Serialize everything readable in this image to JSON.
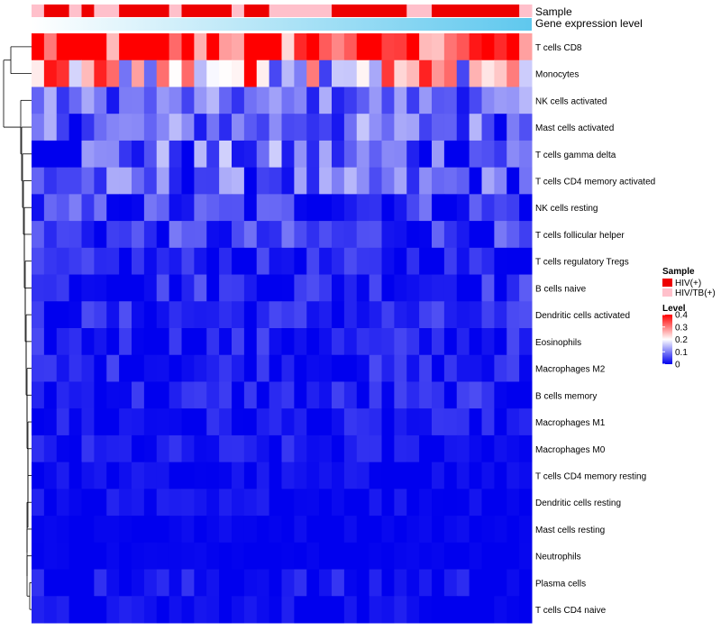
{
  "chart_data": {
    "type": "heatmap",
    "title": "",
    "annotations": {
      "sample_label": "Sample",
      "gene_label": "Gene expression level"
    },
    "n_columns": 40,
    "sample_groups": [
      "HIV(+)",
      "HIV/TB(+)"
    ],
    "sample_colors": {
      "HIV(+)": "#ee0000",
      "HIV/TB(+)": "#ffc0cb"
    },
    "sample_annotation": [
      1,
      0,
      0,
      1,
      0,
      1,
      1,
      0,
      0,
      0,
      0,
      1,
      0,
      0,
      0,
      0,
      1,
      0,
      0,
      1,
      1,
      1,
      1,
      1,
      0,
      0,
      0,
      0,
      0,
      0,
      1,
      1,
      0,
      0,
      0,
      0,
      0,
      0,
      0,
      1
    ],
    "gene_expression_gradient": [
      "#ffffff",
      "#5fc8ee"
    ],
    "rows": [
      "T cells CD8",
      "Monocytes",
      "NK cells activated",
      "Mast cells activated",
      "T cells gamma delta",
      "T cells CD4 memory activated",
      "NK cells resting",
      "T cells follicular helper",
      "T cells regulatory  Tregs",
      "B cells naive",
      "Dendritic cells activated",
      "Eosinophils",
      "Macrophages M2",
      "B cells memory",
      "Macrophages M1",
      "Macrophages M0",
      "T cells CD4 memory resting",
      "Dendritic cells resting",
      "Mast cells resting",
      "Neutrophils",
      "Plasma cells",
      "T cells CD4 naive"
    ],
    "row_means": [
      0.38,
      0.24,
      0.08,
      0.08,
      0.07,
      0.065,
      0.04,
      0.04,
      0.02,
      0.03,
      0.025,
      0.02,
      0.02,
      0.02,
      0.012,
      0.012,
      0.006,
      0.006,
      0.003,
      0.002,
      0.012,
      0.006
    ],
    "row_variation": [
      0.12,
      0.12,
      0.04,
      0.05,
      0.06,
      0.05,
      0.04,
      0.035,
      0.025,
      0.03,
      0.025,
      0.025,
      0.025,
      0.025,
      0.02,
      0.02,
      0.012,
      0.015,
      0.006,
      0.004,
      0.02,
      0.014
    ],
    "legend": {
      "sample_title": "Sample",
      "level_title": "Level",
      "level_ticks": [
        "0.4",
        "0.3",
        "0.2",
        "0.1",
        "0"
      ],
      "level_values": [
        0.4,
        0.3,
        0.2,
        0.1,
        0
      ],
      "level_range": [
        0,
        0.4
      ],
      "colors": {
        "low": "#0000ee",
        "mid": "#ffffff",
        "high": "#ff0000"
      },
      "mid_value": 0.2
    }
  }
}
